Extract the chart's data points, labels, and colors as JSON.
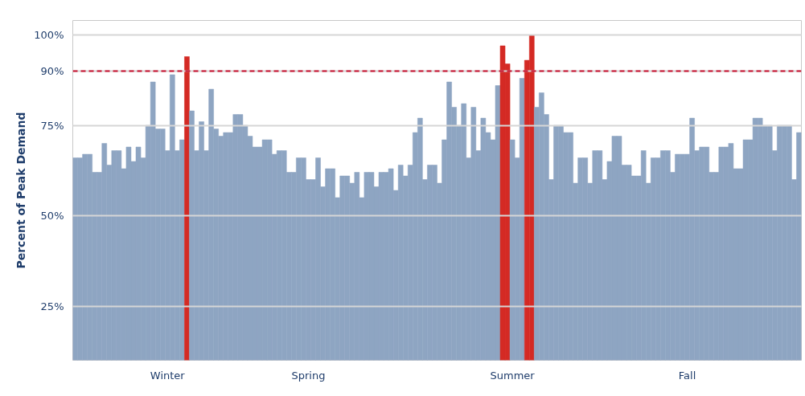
{
  "chart_data": {
    "type": "bar",
    "ylabel": "Percent of Peak Demand",
    "categories": [
      null,
      null,
      null,
      null,
      null,
      null,
      null,
      null,
      null,
      null,
      null,
      null,
      null,
      null,
      null,
      null,
      null,
      null,
      null,
      "Winter",
      null,
      null,
      null,
      null,
      null,
      null,
      null,
      null,
      null,
      null,
      null,
      null,
      null,
      null,
      null,
      null,
      null,
      null,
      null,
      null,
      null,
      null,
      null,
      null,
      null,
      null,
      null,
      null,
      "Spring",
      null,
      null,
      null,
      null,
      null,
      null,
      null,
      null,
      null,
      null,
      null,
      null,
      null,
      null,
      null,
      null,
      null,
      null,
      null,
      null,
      null,
      null,
      null,
      null,
      null,
      null,
      null,
      null,
      null,
      null,
      null,
      null,
      null,
      null,
      null,
      null,
      null,
      null,
      null,
      null,
      null,
      "Summer",
      null,
      null,
      null,
      null,
      null,
      null,
      null,
      null,
      null,
      null,
      null,
      null,
      null,
      null,
      null,
      null,
      null,
      null,
      null,
      null,
      null,
      null,
      null,
      null,
      null,
      null,
      null,
      null,
      null,
      null,
      null,
      null,
      null,
      null,
      null,
      "Fall",
      null,
      null,
      null,
      null,
      null,
      null,
      null,
      null,
      null,
      null,
      null,
      null,
      null,
      null,
      null,
      null,
      null,
      null,
      null,
      null,
      null,
      null,
      null
    ],
    "values": [
      66,
      66,
      67,
      67,
      62,
      62,
      70,
      64,
      68,
      68,
      63,
      69,
      65,
      69,
      66,
      75,
      87,
      74,
      74,
      68,
      89,
      68,
      71,
      94,
      79,
      68,
      76,
      68,
      85,
      74,
      72,
      73,
      73,
      78,
      78,
      75,
      72,
      69,
      69,
      71,
      71,
      67,
      68,
      68,
      62,
      62,
      66,
      66,
      60,
      60,
      66,
      58,
      63,
      63,
      55,
      61,
      61,
      59,
      62,
      55,
      62,
      62,
      58,
      62,
      62,
      63,
      57,
      64,
      61,
      64,
      73,
      77,
      60,
      64,
      64,
      59,
      71,
      87,
      80,
      75,
      81,
      66,
      80,
      68,
      77,
      73,
      71,
      86,
      97,
      92,
      71,
      66,
      88,
      93,
      100,
      80,
      84,
      78,
      60,
      75,
      75,
      73,
      73,
      59,
      66,
      66,
      59,
      68,
      68,
      60,
      65,
      72,
      72,
      64,
      64,
      61,
      61,
      68,
      59,
      66,
      66,
      68,
      68,
      62,
      67,
      67,
      67,
      77,
      68,
      69,
      69,
      62,
      62,
      69,
      69,
      70,
      63,
      63,
      71,
      71,
      77,
      77,
      75,
      75,
      68,
      75,
      75,
      75,
      60,
      73
    ],
    "colors": [
      "#8ea5c2",
      "#8ea5c2",
      "#8ea5c2",
      "#8ea5c2",
      "#8ea5c2",
      "#8ea5c2",
      "#8ea5c2",
      "#8ea5c2",
      "#8ea5c2",
      "#8ea5c2",
      "#8ea5c2",
      "#8ea5c2",
      "#8ea5c2",
      "#8ea5c2",
      "#8ea5c2",
      "#8ea5c2",
      "#8ea5c2",
      "#8ea5c2",
      "#8ea5c2",
      "#8ea5c2",
      "#8ea5c2",
      "#8ea5c2",
      "#8ea5c2",
      "#d42a24",
      "#8ea5c2",
      "#8ea5c2",
      "#8ea5c2",
      "#8ea5c2",
      "#8ea5c2",
      "#8ea5c2",
      "#8ea5c2",
      "#8ea5c2",
      "#8ea5c2",
      "#8ea5c2",
      "#8ea5c2",
      "#8ea5c2",
      "#8ea5c2",
      "#8ea5c2",
      "#8ea5c2",
      "#8ea5c2",
      "#8ea5c2",
      "#8ea5c2",
      "#8ea5c2",
      "#8ea5c2",
      "#8ea5c2",
      "#8ea5c2",
      "#8ea5c2",
      "#8ea5c2",
      "#8ea5c2",
      "#8ea5c2",
      "#8ea5c2",
      "#8ea5c2",
      "#8ea5c2",
      "#8ea5c2",
      "#8ea5c2",
      "#8ea5c2",
      "#8ea5c2",
      "#8ea5c2",
      "#8ea5c2",
      "#8ea5c2",
      "#8ea5c2",
      "#8ea5c2",
      "#8ea5c2",
      "#8ea5c2",
      "#8ea5c2",
      "#8ea5c2",
      "#8ea5c2",
      "#8ea5c2",
      "#8ea5c2",
      "#8ea5c2",
      "#8ea5c2",
      "#8ea5c2",
      "#8ea5c2",
      "#8ea5c2",
      "#8ea5c2",
      "#8ea5c2",
      "#8ea5c2",
      "#8ea5c2",
      "#8ea5c2",
      "#8ea5c2",
      "#8ea5c2",
      "#8ea5c2",
      "#8ea5c2",
      "#8ea5c2",
      "#8ea5c2",
      "#8ea5c2",
      "#8ea5c2",
      "#8ea5c2",
      "#d42a24",
      "#d42a24",
      "#8ea5c2",
      "#8ea5c2",
      "#8ea5c2",
      "#d42a24",
      "#d42a24",
      "#8ea5c2",
      "#8ea5c2",
      "#8ea5c2",
      "#8ea5c2",
      "#8ea5c2",
      "#8ea5c2",
      "#8ea5c2",
      "#8ea5c2",
      "#8ea5c2",
      "#8ea5c2",
      "#8ea5c2",
      "#8ea5c2",
      "#8ea5c2",
      "#8ea5c2",
      "#8ea5c2",
      "#8ea5c2",
      "#8ea5c2",
      "#8ea5c2",
      "#8ea5c2",
      "#8ea5c2",
      "#8ea5c2",
      "#8ea5c2",
      "#8ea5c2",
      "#8ea5c2",
      "#8ea5c2",
      "#8ea5c2",
      "#8ea5c2",
      "#8ea5c2",
      "#8ea5c2",
      "#8ea5c2",
      "#8ea5c2",
      "#8ea5c2",
      "#8ea5c2",
      "#8ea5c2",
      "#8ea5c2",
      "#8ea5c2",
      "#8ea5c2",
      "#8ea5c2",
      "#8ea5c2",
      "#8ea5c2",
      "#8ea5c2",
      "#8ea5c2",
      "#8ea5c2",
      "#8ea5c2",
      "#8ea5c2",
      "#8ea5c2",
      "#8ea5c2",
      "#8ea5c2",
      "#8ea5c2",
      "#8ea5c2",
      "#8ea5c2",
      "#8ea5c2",
      "#8ea5c2",
      "#8ea5c2",
      "#8ea5c2"
    ],
    "ylim": [
      10,
      104
    ],
    "yticks": [
      {
        "value": 25,
        "label": "25%"
      },
      {
        "value": 50,
        "label": "50%"
      },
      {
        "value": 75,
        "label": "75%"
      },
      {
        "value": 90,
        "label": "90%"
      },
      {
        "value": 100,
        "label": "100%"
      }
    ],
    "grid": "y",
    "ref_lines": [
      {
        "axis": "y",
        "value": 90,
        "label": null,
        "color": "#c8102e",
        "line_style": "dashed"
      }
    ]
  }
}
